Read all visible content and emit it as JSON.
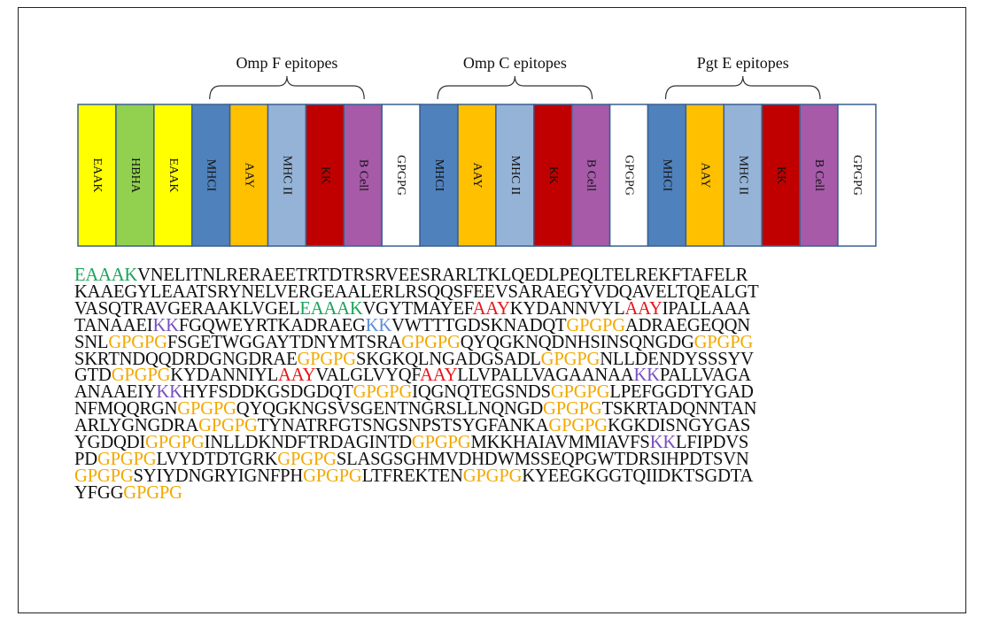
{
  "groups": [
    {
      "label": "Omp F epitopes"
    },
    {
      "label": "Omp C epitopes"
    },
    {
      "label": "Pgt E epitopes"
    }
  ],
  "segments": [
    {
      "label": "EAAK",
      "color": "#ffff00"
    },
    {
      "label": "HBHA",
      "color": "#92d050"
    },
    {
      "label": "EAAK",
      "color": "#ffff00"
    },
    {
      "label": "MHCI",
      "color": "#4f81bd"
    },
    {
      "label": "AAY",
      "color": "#ffc000"
    },
    {
      "label": "MHC II",
      "color": "#95b3d7"
    },
    {
      "label": "KK",
      "color": "#c00000"
    },
    {
      "label": "B Cell",
      "color": "#a65aa8"
    },
    {
      "label": "GPGPG",
      "color": "#ffffff"
    },
    {
      "label": "MHCI",
      "color": "#4f81bd"
    },
    {
      "label": "AAY",
      "color": "#ffc000"
    },
    {
      "label": "MHC II",
      "color": "#95b3d7"
    },
    {
      "label": "KK",
      "color": "#c00000"
    },
    {
      "label": "B Cell",
      "color": "#a65aa8"
    },
    {
      "label": "GPGPG",
      "color": "#ffffff"
    },
    {
      "label": "MHCI",
      "color": "#4f81bd"
    },
    {
      "label": "AAY",
      "color": "#ffc000"
    },
    {
      "label": "MHC II",
      "color": "#95b3d7"
    },
    {
      "label": "KK",
      "color": "#c00000"
    },
    {
      "label": "B Cell",
      "color": "#a65aa8"
    },
    {
      "label": "GPGPG",
      "color": "#ffffff"
    }
  ],
  "colors": {
    "green": "#1aa35a",
    "red": "#e6161b",
    "orange": "#f2a900",
    "purple": "#7a4fbf",
    "blue": "#5b8fd6",
    "box_border": "#3a5f8f"
  },
  "sequence_lines": [
    [
      [
        "EAAAK",
        "green"
      ],
      [
        "VNELITNLRERAEETRTDTRSRVEESRARLTKLQEDLPEQLTELREKFTAFELR",
        ""
      ]
    ],
    [
      [
        "KAAEGYLEAATSRYNELVERGEAALERLRSQQSFEEVSARAEGYVDQAVELTQEALGT",
        ""
      ]
    ],
    [
      [
        "VASQTRAVGERAAKLVGEL",
        ""
      ],
      [
        "EAAAK",
        "green"
      ],
      [
        "VGYTMAYEF",
        ""
      ],
      [
        "AAY",
        "red"
      ],
      [
        "KYDANNVYL",
        ""
      ],
      [
        "AAY",
        "red"
      ],
      [
        "IPALLAAA",
        ""
      ]
    ],
    [
      [
        "TANAAEI",
        ""
      ],
      [
        "KK",
        "purple"
      ],
      [
        "FGQWEYRTKADRAEG",
        ""
      ],
      [
        "KK",
        "blue"
      ],
      [
        "VWTTTGDSKNADQT",
        ""
      ],
      [
        "GPGPG",
        "orange"
      ],
      [
        "ADRAEGEQQN",
        ""
      ]
    ],
    [
      [
        "SNL",
        ""
      ],
      [
        "GPGPG",
        "orange"
      ],
      [
        "FSGETWGGAYTDNYMTSRA",
        ""
      ],
      [
        "GPGPG",
        "orange"
      ],
      [
        "QYQGKNQDNHSINSQNGDG",
        ""
      ],
      [
        "GPGPG",
        "orange"
      ]
    ],
    [
      [
        "SKRTNDQQDRDGNGDRAE",
        ""
      ],
      [
        "GPGPG",
        "orange"
      ],
      [
        "SKGKQLNGADGSADL",
        ""
      ],
      [
        "GPGPG",
        "orange"
      ],
      [
        "NLLDENDYSSSYV",
        ""
      ]
    ],
    [
      [
        "GTD",
        ""
      ],
      [
        "GPGPG",
        "orange"
      ],
      [
        "KYDANNIYL",
        ""
      ],
      [
        "AAY",
        "red"
      ],
      [
        "VALGLVYQF",
        ""
      ],
      [
        "AAY",
        "red"
      ],
      [
        "LLVPALLVAGAANAA",
        ""
      ],
      [
        "KK",
        "purple"
      ],
      [
        "PALLVAGA",
        ""
      ]
    ],
    [
      [
        "ANAAEIY",
        ""
      ],
      [
        "KK",
        "purple"
      ],
      [
        "HYFSDDKGSDGDQT",
        ""
      ],
      [
        "GPGPG",
        "orange"
      ],
      [
        "IQGNQTEGSNDS",
        ""
      ],
      [
        "GPGPG",
        "orange"
      ],
      [
        "LPEFGGDTYGAD",
        ""
      ]
    ],
    [
      [
        "NFMQQRGN",
        ""
      ],
      [
        "GPGPG",
        "orange"
      ],
      [
        "QYQGKNGSVSGENTNGRSLLNQNGD",
        ""
      ],
      [
        "GPGPG",
        "orange"
      ],
      [
        "TSKRTADQNNTAN",
        ""
      ]
    ],
    [
      [
        "ARLYGNGDRA",
        ""
      ],
      [
        "GPGPG",
        "orange"
      ],
      [
        "TYNATRFGTSNGSNPSTSYGFANKA",
        ""
      ],
      [
        "GPGPG",
        "orange"
      ],
      [
        "KGKDISNGYGAS",
        ""
      ]
    ],
    [
      [
        "YGDQDI",
        ""
      ],
      [
        "GPGPG",
        "orange"
      ],
      [
        "INLLDKNDFTRDAGINTD",
        ""
      ],
      [
        "GPGPG",
        "orange"
      ],
      [
        "MKKHAIAVMMIAVFS",
        ""
      ],
      [
        "KK",
        "purple"
      ],
      [
        "LFIPDVS",
        ""
      ]
    ],
    [
      [
        "PD",
        ""
      ],
      [
        "GPGPG",
        "orange"
      ],
      [
        "LVYDTDTGRK",
        ""
      ],
      [
        "GPGPG",
        "orange"
      ],
      [
        "SLASGSGHMVDHDWMSSEQPGWTDRSIHPDTSVN",
        ""
      ]
    ],
    [
      [
        "GPGPG",
        "orange"
      ],
      [
        "SYIYDNGRYIGNFPH",
        ""
      ],
      [
        "GPGPG",
        "orange"
      ],
      [
        "LTFREKTEN",
        ""
      ],
      [
        "GPGPG",
        "orange"
      ],
      [
        "KYEEGKGGTQIIDKTSGDTA",
        ""
      ]
    ],
    [
      [
        "YFGG",
        ""
      ],
      [
        "GPGPG",
        "orange"
      ]
    ]
  ]
}
